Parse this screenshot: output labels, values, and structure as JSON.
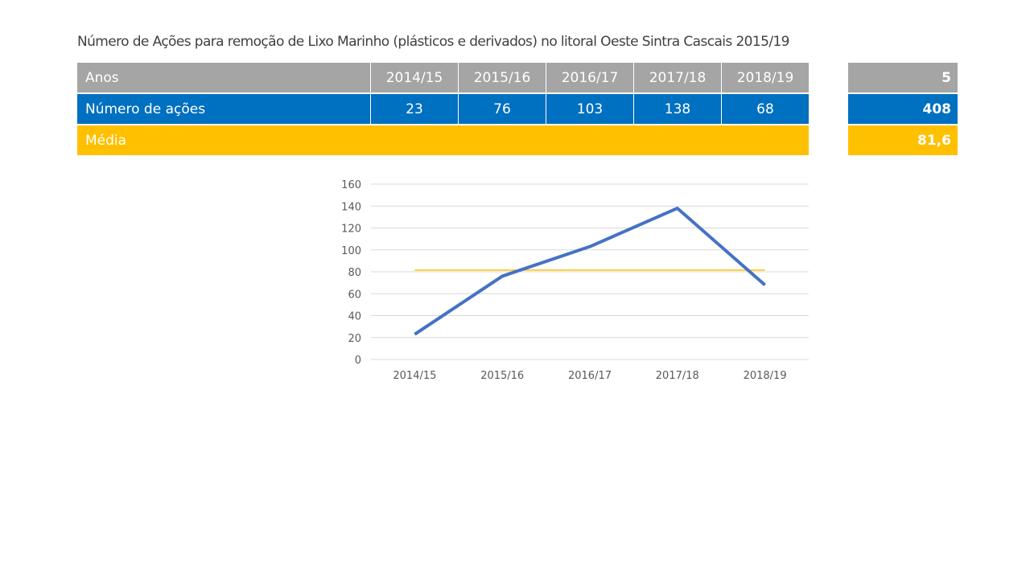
{
  "title": "Número de Ações para remoção de Lixo Marinho (plásticos e derivados) no litoral Oeste Sintra Cascais 2015/19",
  "table": {
    "header_label": "Anos",
    "years": [
      "2014/15",
      "2015/16",
      "2016/17",
      "2017/18",
      "2018/19"
    ],
    "count_label": "Número de ações",
    "counts": [
      "23",
      "76",
      "103",
      "138",
      "68"
    ],
    "mean_label": "Média",
    "total_years": "5",
    "total_actions": "408",
    "mean_value": "81,6"
  },
  "colors": {
    "gray": "#a5a5a5",
    "blue": "#0070c0",
    "gold": "#ffc000",
    "line": "#4472c4"
  },
  "chart_data": {
    "type": "line",
    "categories": [
      "2014/15",
      "2015/16",
      "2016/17",
      "2017/18",
      "2018/19"
    ],
    "series": [
      {
        "name": "Número de ações",
        "values": [
          23,
          76,
          103,
          138,
          68
        ],
        "color": "#4472c4"
      },
      {
        "name": "Média",
        "values": [
          81.6,
          81.6,
          81.6,
          81.6,
          81.6
        ],
        "color": "#ffc000"
      }
    ],
    "yticks": [
      0,
      20,
      40,
      60,
      80,
      100,
      120,
      140,
      160
    ],
    "ylim": [
      0,
      160
    ],
    "grid": true,
    "title": "",
    "xlabel": "",
    "ylabel": ""
  }
}
